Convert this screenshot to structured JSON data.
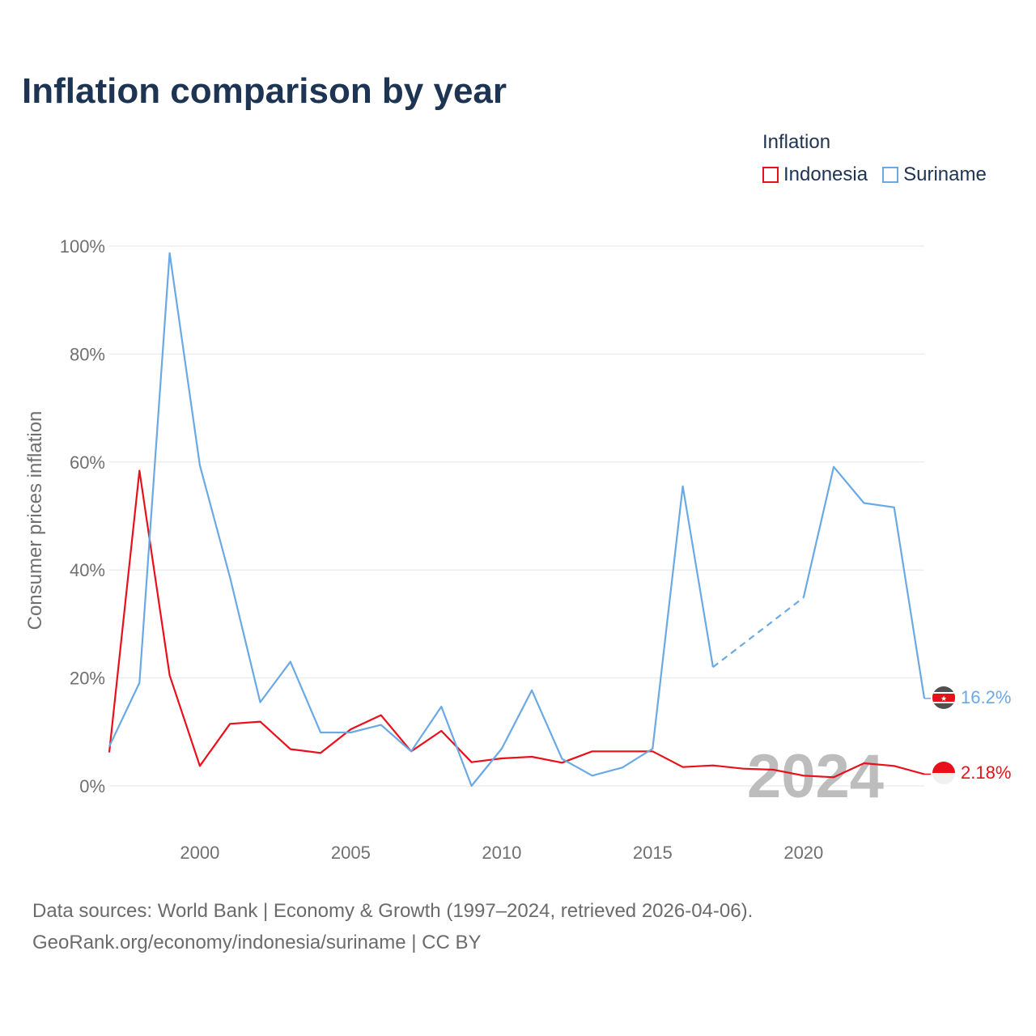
{
  "colors": {
    "indonesia": "#e8101a",
    "suriname": "#6aa9e4",
    "title": "#1d3452",
    "grid": "#e6e6e6",
    "text": "#707070"
  },
  "legend": {
    "title": "Inflation",
    "items": [
      "Indonesia",
      "Suriname"
    ]
  },
  "footer": {
    "line1": "Data sources: World Bank | Economy & Growth (1997–2024, retrieved 2026-04-06).",
    "line2": "GeoRank.org/economy/indonesia/suriname | CC BY"
  },
  "chart_data": {
    "type": "line",
    "title": "Inflation comparison by year",
    "xlabel": "",
    "ylabel": "Consumer prices inflation",
    "xlim": [
      1997,
      2024
    ],
    "ylim": [
      -6,
      100
    ],
    "y_ticks": [
      {
        "value": 0,
        "label": "0%"
      },
      {
        "value": 20,
        "label": "20%"
      },
      {
        "value": 40,
        "label": "40%"
      },
      {
        "value": 60,
        "label": "60%"
      },
      {
        "value": 80,
        "label": "80%"
      },
      {
        "value": 100,
        "label": "100%"
      }
    ],
    "x_ticks": [
      {
        "value": 2000,
        "label": "2000"
      },
      {
        "value": 2005,
        "label": "2005"
      },
      {
        "value": 2010,
        "label": "2010"
      },
      {
        "value": 2015,
        "label": "2015"
      },
      {
        "value": 2020,
        "label": "2020"
      }
    ],
    "year_watermark": "2024",
    "series": [
      {
        "name": "Indonesia",
        "x": [
          1997,
          1998,
          1999,
          2000,
          2001,
          2002,
          2003,
          2004,
          2005,
          2006,
          2007,
          2008,
          2009,
          2010,
          2011,
          2012,
          2013,
          2014,
          2015,
          2016,
          2017,
          2018,
          2019,
          2020,
          2021,
          2022,
          2023,
          2024
        ],
        "values": [
          6.2,
          58.4,
          20.5,
          3.7,
          11.5,
          11.9,
          6.8,
          6.1,
          10.5,
          13.1,
          6.4,
          10.2,
          4.4,
          5.1,
          5.4,
          4.3,
          6.4,
          6.4,
          6.4,
          3.5,
          3.8,
          3.2,
          3.0,
          1.9,
          1.6,
          4.2,
          3.7,
          2.18
        ],
        "end_label": "2.18%"
      },
      {
        "name": "Suriname",
        "x": [
          1997,
          1998,
          1999,
          2000,
          2001,
          2002,
          2003,
          2004,
          2005,
          2006,
          2007,
          2008,
          2009,
          2010,
          2011,
          2012,
          2013,
          2014,
          2015,
          2016,
          2017,
          2020,
          2021,
          2022,
          2023,
          2024
        ],
        "values": [
          7.3,
          19.1,
          98.7,
          59.4,
          38.6,
          15.5,
          23.0,
          9.9,
          9.9,
          11.3,
          6.4,
          14.7,
          0.0,
          6.9,
          17.7,
          5.0,
          1.9,
          3.4,
          6.9,
          55.5,
          22.0,
          34.9,
          59.1,
          52.4,
          51.6,
          16.2
        ],
        "gap_after_x": 2017,
        "end_label": "16.2%"
      }
    ]
  }
}
